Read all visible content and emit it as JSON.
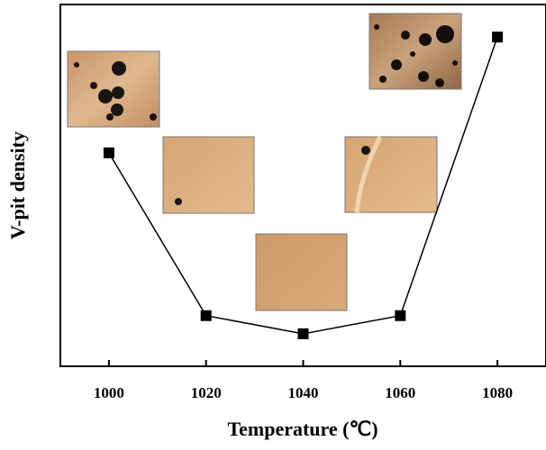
{
  "chart_data": {
    "type": "line",
    "xlabel": "Temperature (℃)",
    "ylabel": "V-pit density",
    "x": [
      1000,
      1020,
      1040,
      1060,
      1080
    ],
    "values": [
      59,
      14,
      9,
      14,
      91
    ],
    "color": "#000000",
    "xlim": [
      990,
      1090
    ],
    "ylim": [
      0,
      100
    ],
    "xticks": [
      1000,
      1020,
      1040,
      1060,
      1080
    ]
  }
}
